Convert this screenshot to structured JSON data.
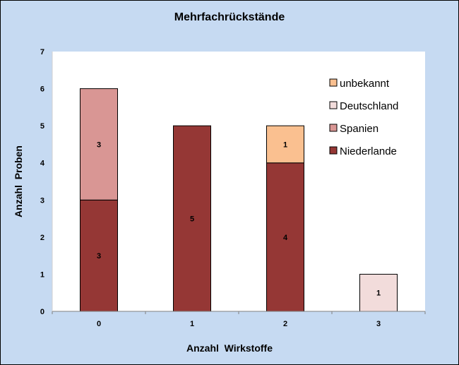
{
  "chart_data": {
    "type": "bar",
    "stacked": true,
    "title": "Mehrfachrückstände",
    "xlabel": "Anzahl  Wirkstoffe",
    "ylabel": "Anzahl  Proben",
    "categories": [
      "0",
      "1",
      "2",
      "3"
    ],
    "ylim": [
      0,
      7
    ],
    "yticks": [
      "0",
      "1",
      "2",
      "3",
      "4",
      "5",
      "6",
      "7"
    ],
    "legend_position": "top-right",
    "series": [
      {
        "name": "Niederlande",
        "color": "#953735",
        "values": [
          3,
          5,
          4,
          0
        ]
      },
      {
        "name": "Spanien",
        "color": "#d99694",
        "values": [
          3,
          0,
          0,
          0
        ]
      },
      {
        "name": "Deutschland",
        "color": "#f2dcdb",
        "values": [
          0,
          0,
          0,
          1
        ]
      },
      {
        "name": "unbekannt",
        "color": "#fac090",
        "values": [
          0,
          0,
          1,
          0
        ]
      }
    ],
    "legend_order": [
      "unbekannt",
      "Deutschland",
      "Spanien",
      "Niederlande"
    ]
  }
}
